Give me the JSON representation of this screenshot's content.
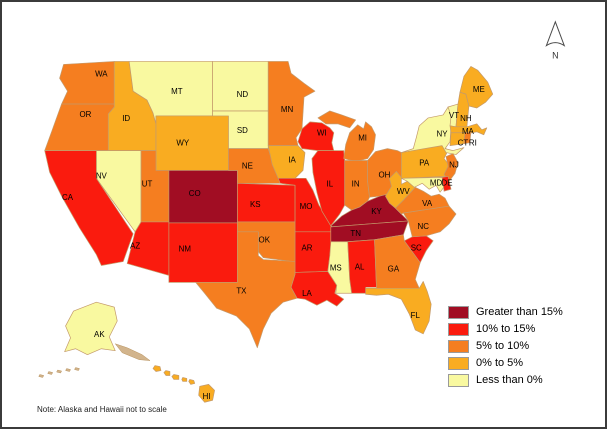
{
  "map": {
    "note": "Note: Alaska and Hawaii not to scale",
    "north_label": "N",
    "colors": {
      "state_border": "#C49A6B",
      "terrain_tan": "#D2B48C",
      "background": "#FFFFFF"
    },
    "states": {
      "WA": {
        "label": "WA",
        "category": "pct_5_10"
      },
      "OR": {
        "label": "OR",
        "category": "pct_5_10"
      },
      "CA": {
        "label": "CA",
        "category": "pct_10_15"
      },
      "NV": {
        "label": "NV",
        "category": "lt_0"
      },
      "ID": {
        "label": "ID",
        "category": "pct_0_5"
      },
      "MT": {
        "label": "MT",
        "category": "lt_0"
      },
      "WY": {
        "label": "WY",
        "category": "pct_0_5"
      },
      "UT": {
        "label": "UT",
        "category": "pct_5_10"
      },
      "AZ": {
        "label": "AZ",
        "category": "pct_10_15"
      },
      "CO": {
        "label": "CO",
        "category": "gt_15"
      },
      "NM": {
        "label": "NM",
        "category": "pct_10_15"
      },
      "ND": {
        "label": "ND",
        "category": "lt_0"
      },
      "SD": {
        "label": "SD",
        "category": "lt_0"
      },
      "NE": {
        "label": "NE",
        "category": "pct_5_10"
      },
      "KS": {
        "label": "KS",
        "category": "pct_10_15"
      },
      "OK": {
        "label": "OK",
        "category": "pct_5_10"
      },
      "TX": {
        "label": "TX",
        "category": "pct_5_10"
      },
      "MN": {
        "label": "MN",
        "category": "pct_5_10"
      },
      "IA": {
        "label": "IA",
        "category": "pct_0_5"
      },
      "MO": {
        "label": "MO",
        "category": "pct_10_15"
      },
      "AR": {
        "label": "AR",
        "category": "pct_10_15"
      },
      "LA": {
        "label": "LA",
        "category": "pct_10_15"
      },
      "WI": {
        "label": "WI",
        "category": "pct_10_15"
      },
      "IL": {
        "label": "IL",
        "category": "pct_10_15"
      },
      "MI": {
        "label": "MI",
        "category": "pct_5_10"
      },
      "IN": {
        "label": "IN",
        "category": "pct_5_10"
      },
      "OH": {
        "label": "OH",
        "category": "pct_5_10"
      },
      "KY": {
        "label": "KY",
        "category": "gt_15"
      },
      "TN": {
        "label": "TN",
        "category": "gt_15"
      },
      "MS": {
        "label": "MS",
        "category": "lt_0"
      },
      "AL": {
        "label": "AL",
        "category": "pct_10_15"
      },
      "GA": {
        "label": "GA",
        "category": "pct_5_10"
      },
      "FL": {
        "label": "FL",
        "category": "pct_0_5"
      },
      "SC": {
        "label": "SC",
        "category": "pct_10_15"
      },
      "NC": {
        "label": "NC",
        "category": "pct_5_10"
      },
      "VA": {
        "label": "VA",
        "category": "pct_5_10"
      },
      "WV": {
        "label": "WV",
        "category": "pct_0_5"
      },
      "PA": {
        "label": "PA",
        "category": "pct_0_5"
      },
      "NY": {
        "label": "NY",
        "category": "lt_0"
      },
      "NJ": {
        "label": "NJ",
        "category": "pct_5_10"
      },
      "VT": {
        "label": "VT",
        "category": "lt_0"
      },
      "NH": {
        "label": "NH",
        "category": "pct_0_5"
      },
      "ME": {
        "label": "ME",
        "category": "pct_0_5"
      },
      "MA": {
        "label": "MA",
        "category": "pct_0_5"
      },
      "CT": {
        "label": "CT",
        "category": "pct_0_5"
      },
      "RI": {
        "label": "RI",
        "category": "pct_5_10"
      },
      "MD": {
        "label": "MD",
        "category": "lt_0"
      },
      "DE": {
        "label": "DE",
        "category": "pct_10_15"
      },
      "AK": {
        "label": "AK",
        "category": "lt_0"
      },
      "HI": {
        "label": "HI",
        "category": "pct_0_5"
      }
    }
  },
  "legend": {
    "items": [
      {
        "category": "gt_15",
        "label": "Greater than 15%",
        "color": "#A10D23"
      },
      {
        "category": "pct_10_15",
        "label": "10% to 15%",
        "color": "#FA1B0E"
      },
      {
        "category": "pct_5_10",
        "label": "5% to 10%",
        "color": "#F57E20"
      },
      {
        "category": "pct_0_5",
        "label": "0% to 5%",
        "color": "#F9AC21"
      },
      {
        "category": "lt_0",
        "label": "Less than 0%",
        "color": "#F9F9A0"
      }
    ]
  },
  "chart_data": {
    "type": "choropleth",
    "region": "United States",
    "classes": [
      {
        "label": "Greater than 15%",
        "color": "#A10D23",
        "states": [
          "CO",
          "KY",
          "TN"
        ]
      },
      {
        "label": "10% to 15%",
        "color": "#FA1B0E",
        "states": [
          "CA",
          "AZ",
          "NM",
          "KS",
          "MO",
          "AR",
          "LA",
          "AL",
          "SC",
          "IL",
          "WI",
          "DE"
        ]
      },
      {
        "label": "5% to 10%",
        "color": "#F57E20",
        "states": [
          "WA",
          "OR",
          "UT",
          "NE",
          "MN",
          "MI",
          "IN",
          "OH",
          "OK",
          "TX",
          "GA",
          "NC",
          "VA",
          "NJ",
          "RI"
        ]
      },
      {
        "label": "0% to 5%",
        "color": "#F9AC21",
        "states": [
          "ID",
          "WY",
          "IA",
          "WV",
          "PA",
          "FL",
          "ME",
          "NH",
          "MA",
          "CT",
          "HI"
        ]
      },
      {
        "label": "Less than 0%",
        "color": "#F9F9A0",
        "states": [
          "MT",
          "ND",
          "SD",
          "NV",
          "NY",
          "VT",
          "MS",
          "MD",
          "AK"
        ]
      }
    ],
    "legend_position": "bottom-right",
    "note": "Note: Alaska and Hawaii not to scale"
  }
}
